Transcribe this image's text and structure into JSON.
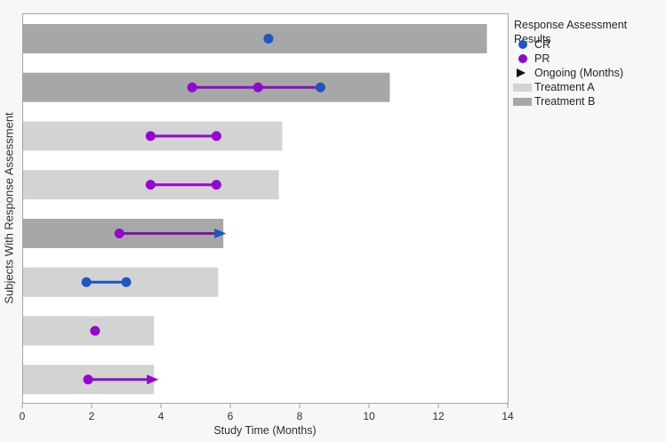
{
  "legend": {
    "title": "Response Assessment Results",
    "items": [
      {
        "label": "CR",
        "marker": "dot",
        "color_key": "cr"
      },
      {
        "label": "PR",
        "marker": "dot",
        "color_key": "pr"
      },
      {
        "label": "Ongoing (Months)",
        "marker": "arrow",
        "color_key": "ongoing"
      },
      {
        "label": "Treatment A",
        "marker": "swatch",
        "color_key": "treatment_a"
      },
      {
        "label": "Treatment B",
        "marker": "swatch",
        "color_key": "treatment_b"
      }
    ]
  },
  "chart_data": {
    "type": "bar",
    "subtype": "swimmer-plot",
    "xlabel": "Study Time (Months)",
    "ylabel": "Subjects With Response Assessment",
    "xlim": [
      0,
      14
    ],
    "xticks": [
      0,
      2,
      4,
      6,
      8,
      10,
      12,
      14
    ],
    "grid": false,
    "legend_position": "right",
    "colors": {
      "cr": "#1f56c4",
      "pr": "#9406d2",
      "ongoing": "#111111",
      "treatment_a": "#d3d3d3",
      "treatment_b": "#a7a7a7",
      "plot_background": "#ffffff",
      "figure_background": "#f7f7f7",
      "axis": "#a3a3a3",
      "text": "#303030"
    },
    "subjects": [
      {
        "treatment": "B",
        "bar_months": 13.4,
        "events": [
          {
            "type": "CR",
            "month": 7.1
          }
        ]
      },
      {
        "treatment": "B",
        "bar_months": 10.6,
        "events": [
          {
            "type": "PR",
            "month": 4.9
          },
          {
            "type": "PR",
            "month": 6.8
          },
          {
            "type": "CR",
            "month": 8.6
          }
        ],
        "line": {
          "from": 4.9,
          "to": 8.6,
          "color_key": "pr"
        }
      },
      {
        "treatment": "A",
        "bar_months": 7.5,
        "events": [
          {
            "type": "PR",
            "month": 3.7
          },
          {
            "type": "PR",
            "month": 5.6
          }
        ],
        "line": {
          "from": 3.7,
          "to": 5.6,
          "color_key": "pr"
        }
      },
      {
        "treatment": "A",
        "bar_months": 7.4,
        "events": [
          {
            "type": "PR",
            "month": 3.7
          },
          {
            "type": "PR",
            "month": 5.6
          }
        ],
        "line": {
          "from": 3.7,
          "to": 5.6,
          "color_key": "pr"
        }
      },
      {
        "treatment": "B",
        "bar_months": 5.8,
        "events": [
          {
            "type": "PR",
            "month": 2.8
          }
        ],
        "line": {
          "from": 2.8,
          "to": 5.55,
          "color_key": "pr"
        },
        "arrow": {
          "month": 5.8,
          "color_key": "cr"
        }
      },
      {
        "treatment": "A",
        "bar_months": 5.65,
        "events": [
          {
            "type": "CR",
            "month": 1.85
          },
          {
            "type": "CR",
            "month": 3.0
          }
        ],
        "line": {
          "from": 1.85,
          "to": 3.0,
          "color_key": "cr"
        }
      },
      {
        "treatment": "A",
        "bar_months": 3.8,
        "events": [
          {
            "type": "PR",
            "month": 2.1
          }
        ]
      },
      {
        "treatment": "A",
        "bar_months": 3.8,
        "events": [
          {
            "type": "PR",
            "month": 1.9
          }
        ],
        "line": {
          "from": 1.9,
          "to": 3.6,
          "color_key": "pr"
        },
        "arrow": {
          "month": 3.85,
          "color_key": "pr"
        }
      }
    ]
  }
}
